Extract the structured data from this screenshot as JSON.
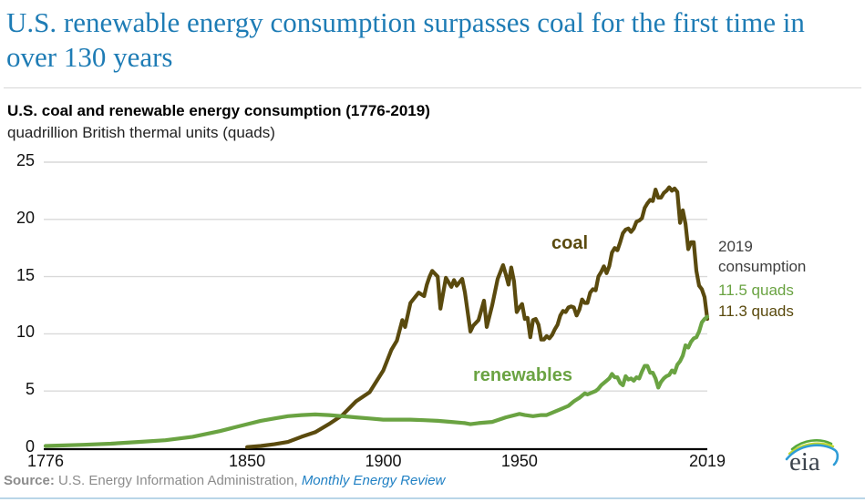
{
  "page": {
    "headline": "U.S. renewable energy consumption surpasses coal for the first time in over 130 years",
    "headline_color": "#1e7cb5",
    "source": {
      "prefix": "Source:",
      "text": " U.S. Energy Information Administration, ",
      "link": "Monthly Energy Review",
      "link_color": "#2181c4"
    },
    "logo_text": "eia"
  },
  "chart_data": {
    "type": "line",
    "title": "U.S. coal and renewable energy consumption (1776-2019)",
    "subtitle": "quadrillion British thermal units (quads)",
    "x_axis": {
      "range": [
        1776,
        2019
      ],
      "ticks": [
        1776,
        1850,
        1900,
        1950,
        2019
      ]
    },
    "y_axis": {
      "range": [
        0,
        25
      ],
      "ticks": [
        0,
        5,
        10,
        15,
        20,
        25
      ],
      "grid": true,
      "grid_color": "#d9d9d9"
    },
    "legend_position": "inline-labels",
    "annotation": {
      "lines": [
        "2019",
        "consumption"
      ],
      "color": "#3f3f3f"
    },
    "series": [
      {
        "name": "coal",
        "label": "coal",
        "color": "#5a4a0e",
        "end_value_label": "11.3 quads",
        "points": [
          [
            1850,
            0.1
          ],
          [
            1855,
            0.2
          ],
          [
            1860,
            0.35
          ],
          [
            1865,
            0.55
          ],
          [
            1870,
            1.0
          ],
          [
            1875,
            1.4
          ],
          [
            1880,
            2.1
          ],
          [
            1885,
            2.9
          ],
          [
            1890,
            4.1
          ],
          [
            1895,
            4.9
          ],
          [
            1900,
            6.8
          ],
          [
            1903,
            8.6
          ],
          [
            1905,
            9.4
          ],
          [
            1907,
            11.2
          ],
          [
            1908,
            10.6
          ],
          [
            1910,
            12.7
          ],
          [
            1913,
            13.6
          ],
          [
            1915,
            13.3
          ],
          [
            1916,
            14.3
          ],
          [
            1917,
            15.0
          ],
          [
            1918,
            15.5
          ],
          [
            1920,
            15.0
          ],
          [
            1921,
            12.2
          ],
          [
            1923,
            14.9
          ],
          [
            1925,
            14.1
          ],
          [
            1926,
            14.7
          ],
          [
            1927,
            14.2
          ],
          [
            1929,
            14.8
          ],
          [
            1930,
            13.6
          ],
          [
            1932,
            10.2
          ],
          [
            1933,
            10.7
          ],
          [
            1935,
            11.2
          ],
          [
            1937,
            12.9
          ],
          [
            1938,
            10.6
          ],
          [
            1940,
            12.5
          ],
          [
            1942,
            14.8
          ],
          [
            1944,
            16.0
          ],
          [
            1945,
            15.2
          ],
          [
            1946,
            14.3
          ],
          [
            1947,
            15.8
          ],
          [
            1948,
            14.6
          ],
          [
            1949,
            11.9
          ],
          [
            1950,
            12.3
          ],
          [
            1951,
            12.6
          ],
          [
            1952,
            11.3
          ],
          [
            1953,
            11.4
          ],
          [
            1954,
            9.7
          ],
          [
            1955,
            11.2
          ],
          [
            1956,
            11.3
          ],
          [
            1957,
            10.8
          ],
          [
            1958,
            9.5
          ],
          [
            1959,
            9.5
          ],
          [
            1960,
            9.8
          ],
          [
            1961,
            9.6
          ],
          [
            1962,
            9.9
          ],
          [
            1963,
            10.4
          ],
          [
            1964,
            10.8
          ],
          [
            1965,
            11.6
          ],
          [
            1966,
            12.0
          ],
          [
            1967,
            11.9
          ],
          [
            1968,
            12.3
          ],
          [
            1969,
            12.4
          ],
          [
            1970,
            12.3
          ],
          [
            1971,
            11.6
          ],
          [
            1972,
            12.1
          ],
          [
            1973,
            13.0
          ],
          [
            1974,
            12.7
          ],
          [
            1975,
            12.7
          ],
          [
            1976,
            13.6
          ],
          [
            1977,
            13.9
          ],
          [
            1978,
            13.8
          ],
          [
            1979,
            15.0
          ],
          [
            1980,
            15.4
          ],
          [
            1981,
            15.9
          ],
          [
            1982,
            15.3
          ],
          [
            1983,
            15.9
          ],
          [
            1984,
            17.1
          ],
          [
            1985,
            17.5
          ],
          [
            1986,
            17.3
          ],
          [
            1987,
            18.0
          ],
          [
            1988,
            18.8
          ],
          [
            1989,
            19.1
          ],
          [
            1990,
            19.2
          ],
          [
            1991,
            18.9
          ],
          [
            1992,
            19.2
          ],
          [
            1993,
            19.8
          ],
          [
            1994,
            19.9
          ],
          [
            1995,
            20.1
          ],
          [
            1996,
            21.0
          ],
          [
            1997,
            21.4
          ],
          [
            1998,
            21.7
          ],
          [
            1999,
            21.6
          ],
          [
            2000,
            22.6
          ],
          [
            2001,
            21.9
          ],
          [
            2002,
            21.9
          ],
          [
            2003,
            22.3
          ],
          [
            2004,
            22.5
          ],
          [
            2005,
            22.8
          ],
          [
            2006,
            22.5
          ],
          [
            2007,
            22.7
          ],
          [
            2008,
            22.4
          ],
          [
            2009,
            19.7
          ],
          [
            2010,
            20.8
          ],
          [
            2011,
            19.6
          ],
          [
            2012,
            17.4
          ],
          [
            2013,
            18.0
          ],
          [
            2014,
            18.0
          ],
          [
            2015,
            15.5
          ],
          [
            2016,
            14.2
          ],
          [
            2017,
            13.9
          ],
          [
            2018,
            13.2
          ],
          [
            2019,
            11.3
          ]
        ]
      },
      {
        "name": "renewables",
        "label": "renewables",
        "color": "#6aa342",
        "end_value_label": "11.5 quads",
        "points": [
          [
            1776,
            0.2
          ],
          [
            1790,
            0.3
          ],
          [
            1800,
            0.4
          ],
          [
            1810,
            0.55
          ],
          [
            1820,
            0.7
          ],
          [
            1830,
            1.0
          ],
          [
            1840,
            1.5
          ],
          [
            1845,
            1.8
          ],
          [
            1850,
            2.1
          ],
          [
            1855,
            2.4
          ],
          [
            1860,
            2.6
          ],
          [
            1865,
            2.8
          ],
          [
            1870,
            2.9
          ],
          [
            1875,
            2.95
          ],
          [
            1880,
            2.9
          ],
          [
            1885,
            2.8
          ],
          [
            1890,
            2.7
          ],
          [
            1895,
            2.6
          ],
          [
            1900,
            2.5
          ],
          [
            1905,
            2.5
          ],
          [
            1910,
            2.5
          ],
          [
            1915,
            2.45
          ],
          [
            1920,
            2.4
          ],
          [
            1925,
            2.3
          ],
          [
            1930,
            2.2
          ],
          [
            1932,
            2.1
          ],
          [
            1935,
            2.2
          ],
          [
            1940,
            2.3
          ],
          [
            1945,
            2.7
          ],
          [
            1950,
            3.0
          ],
          [
            1952,
            2.9
          ],
          [
            1955,
            2.8
          ],
          [
            1958,
            2.9
          ],
          [
            1960,
            2.9
          ],
          [
            1962,
            3.1
          ],
          [
            1965,
            3.4
          ],
          [
            1968,
            3.7
          ],
          [
            1970,
            4.1
          ],
          [
            1972,
            4.4
          ],
          [
            1974,
            4.8
          ],
          [
            1975,
            4.7
          ],
          [
            1976,
            4.8
          ],
          [
            1978,
            5.0
          ],
          [
            1979,
            5.2
          ],
          [
            1980,
            5.5
          ],
          [
            1982,
            5.9
          ],
          [
            1983,
            6.1
          ],
          [
            1984,
            6.5
          ],
          [
            1985,
            6.2
          ],
          [
            1986,
            6.2
          ],
          [
            1987,
            5.7
          ],
          [
            1988,
            5.5
          ],
          [
            1989,
            6.3
          ],
          [
            1990,
            6.0
          ],
          [
            1991,
            6.1
          ],
          [
            1992,
            5.9
          ],
          [
            1993,
            6.2
          ],
          [
            1994,
            6.1
          ],
          [
            1995,
            6.7
          ],
          [
            1996,
            7.2
          ],
          [
            1997,
            7.2
          ],
          [
            1998,
            6.6
          ],
          [
            1999,
            6.6
          ],
          [
            2000,
            6.1
          ],
          [
            2001,
            5.3
          ],
          [
            2002,
            5.8
          ],
          [
            2003,
            6.1
          ],
          [
            2004,
            6.3
          ],
          [
            2005,
            6.4
          ],
          [
            2006,
            6.8
          ],
          [
            2007,
            6.6
          ],
          [
            2008,
            7.3
          ],
          [
            2009,
            7.6
          ],
          [
            2010,
            8.1
          ],
          [
            2011,
            9.0
          ],
          [
            2012,
            8.8
          ],
          [
            2013,
            9.3
          ],
          [
            2014,
            9.6
          ],
          [
            2015,
            9.7
          ],
          [
            2016,
            10.2
          ],
          [
            2017,
            11.0
          ],
          [
            2018,
            11.3
          ],
          [
            2019,
            11.5
          ]
        ]
      }
    ]
  }
}
